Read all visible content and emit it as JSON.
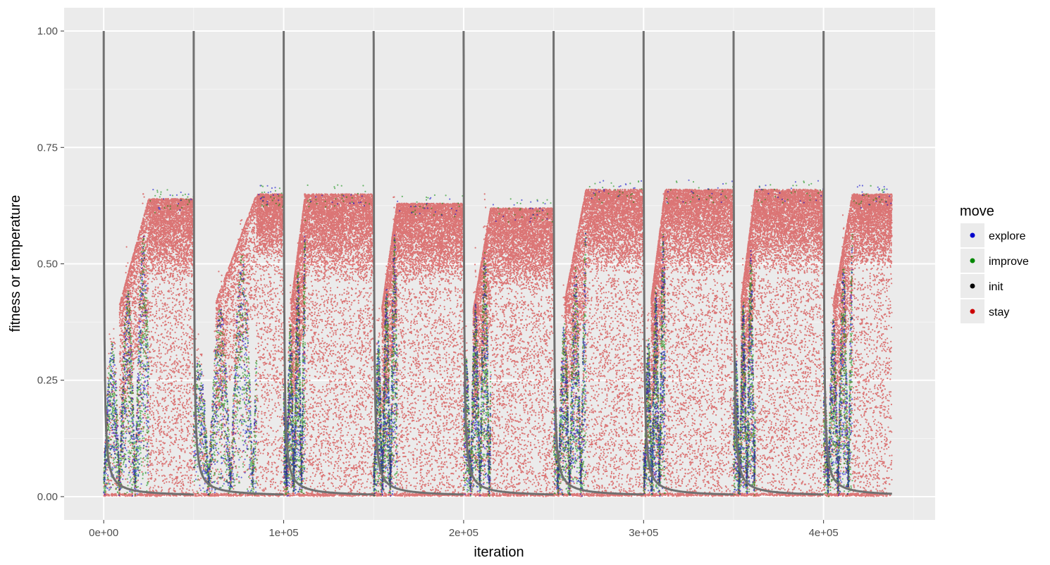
{
  "chart_data": {
    "type": "scatter",
    "xlabel": "iteration",
    "ylabel": "fitness or temperature",
    "xlim": [
      -22000,
      462000
    ],
    "ylim": [
      -0.05,
      1.05
    ],
    "x_ticks": [
      0,
      100000,
      200000,
      300000,
      400000
    ],
    "x_tick_labels": [
      "0e+00",
      "1e+05",
      "2e+05",
      "3e+05",
      "4e+05"
    ],
    "y_ticks": [
      0,
      0.25,
      0.5,
      0.75,
      1.0
    ],
    "y_tick_labels": [
      "0.00",
      "0.25",
      "0.50",
      "0.75",
      "1.00"
    ],
    "grid": true,
    "legend": {
      "title": "move",
      "position": "right",
      "entries": [
        {
          "label": "explore",
          "color": "#0000cc"
        },
        {
          "label": "improve",
          "color": "#008800"
        },
        {
          "label": "init",
          "color": "#000000"
        },
        {
          "label": "stay",
          "color": "#cc0000"
        }
      ]
    },
    "temperature_series": {
      "color": "#707070",
      "restart_iterations": [
        0,
        50000,
        100000,
        150000,
        200000,
        250000,
        300000,
        350000,
        400000
      ],
      "end_iteration": 438000,
      "start_value": 1.0,
      "end_value_approx": 0.01
    },
    "fitness_segments": [
      {
        "start": 0,
        "end": 50000,
        "stay_plateau_from": 25000,
        "plateau_low": 0.45,
        "plateau_high": 0.64
      },
      {
        "start": 50000,
        "end": 100000,
        "stay_plateau_from": 85000,
        "plateau_low": 0.5,
        "plateau_high": 0.65
      },
      {
        "start": 100000,
        "end": 150000,
        "stay_plateau_from": 112000,
        "plateau_low": 0.45,
        "plateau_high": 0.65
      },
      {
        "start": 150000,
        "end": 200000,
        "stay_plateau_from": 163000,
        "plateau_low": 0.45,
        "plateau_high": 0.63
      },
      {
        "start": 200000,
        "end": 250000,
        "stay_plateau_from": 215000,
        "plateau_low": 0.43,
        "plateau_high": 0.62
      },
      {
        "start": 250000,
        "end": 300000,
        "stay_plateau_from": 268000,
        "plateau_low": 0.47,
        "plateau_high": 0.66
      },
      {
        "start": 300000,
        "end": 350000,
        "stay_plateau_from": 312000,
        "plateau_low": 0.47,
        "plateau_high": 0.66
      },
      {
        "start": 350000,
        "end": 400000,
        "stay_plateau_from": 362000,
        "plateau_low": 0.47,
        "plateau_high": 0.66
      },
      {
        "start": 400000,
        "end": 438000,
        "stay_plateau_from": 416000,
        "plateau_low": 0.48,
        "plateau_high": 0.65
      }
    ]
  }
}
